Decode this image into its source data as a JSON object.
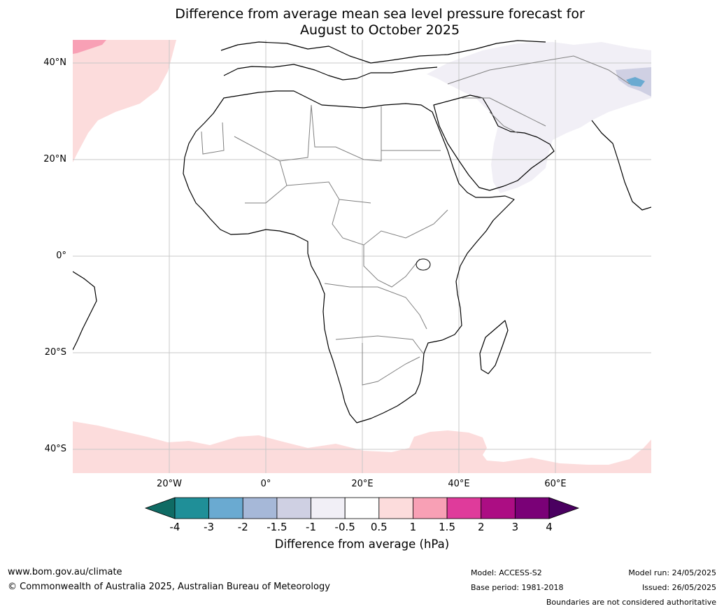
{
  "title": {
    "line1": "Difference from average mean sea level pressure forecast for",
    "line2": "August to October 2025"
  },
  "map": {
    "lat_labels": [
      "40°N",
      "20°N",
      "0°",
      "20°S",
      "40°S"
    ],
    "lon_labels": [
      "20°W",
      "0°",
      "20°E",
      "40°E",
      "60°E"
    ],
    "extent": {
      "lon": [
        -40,
        80
      ],
      "lat": [
        -45,
        45
      ]
    },
    "grid": true,
    "coastline_color": "#000000",
    "border_color": "#808080"
  },
  "colorbar": {
    "ticks": [
      "-4",
      "-3",
      "-2",
      "-1.5",
      "-1",
      "-0.5",
      "0.5",
      "1",
      "1.5",
      "2",
      "3",
      "4"
    ],
    "colors": [
      "#0f6b64",
      "#1f8f98",
      "#6aaad1",
      "#a6b8d8",
      "#cfd0e3",
      "#f1eff6",
      "#ffffff",
      "#fcdcdc",
      "#f8a0b5",
      "#df3b9b",
      "#ac0d83",
      "#7a0177",
      "#4a0060"
    ],
    "label": "Difference from average (hPa)"
  },
  "footer": {
    "website": "www.bom.gov.au/climate",
    "copyright": "© Commonwealth of Australia 2025, Australian Bureau of Meteorology",
    "model": "Model: ACCESS-S2",
    "base_period": "Base period: 1981-2018",
    "model_run": "Model run: 24/05/2025",
    "issued": "Issued: 26/05/2025",
    "disclaimer": "Boundaries are not considered authoritative"
  }
}
